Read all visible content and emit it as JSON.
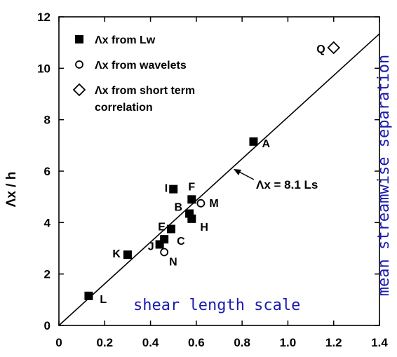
{
  "chart_data": {
    "type": "scatter",
    "title": "",
    "xlabel": "",
    "ylabel": "Λx / h",
    "xlim": [
      0,
      1.4
    ],
    "ylim": [
      0,
      12
    ],
    "x_ticks": [
      "0",
      "0.2",
      "0.4",
      "0.6",
      "0.8",
      "1.0",
      "1.2",
      "1.4"
    ],
    "y_ticks": [
      "0",
      "2",
      "4",
      "6",
      "8",
      "10",
      "12"
    ],
    "grid": false,
    "legend_position": "top-left",
    "legend": [
      {
        "marker": "square",
        "text": "Λx from Lw"
      },
      {
        "marker": "circle",
        "text": "Λx from wavelets"
      },
      {
        "marker": "diamond",
        "text": "Λx from short term correlation"
      }
    ],
    "series": [
      {
        "marker": "square",
        "points": [
          {
            "label": "L",
            "x": 0.13,
            "y": 1.15
          },
          {
            "label": "K",
            "x": 0.3,
            "y": 2.75
          },
          {
            "label": "J",
            "x": 0.44,
            "y": 3.15
          },
          {
            "label": "C",
            "x": 0.46,
            "y": 3.35
          },
          {
            "label": "E",
            "x": 0.49,
            "y": 3.75
          },
          {
            "label": "I",
            "x": 0.5,
            "y": 5.3
          },
          {
            "label": "B",
            "x": 0.57,
            "y": 4.35
          },
          {
            "label": "H",
            "x": 0.58,
            "y": 4.15
          },
          {
            "label": "F",
            "x": 0.58,
            "y": 4.9
          },
          {
            "label": "A",
            "x": 0.85,
            "y": 7.15
          }
        ]
      },
      {
        "marker": "circle",
        "points": [
          {
            "label": "N",
            "x": 0.46,
            "y": 2.85
          },
          {
            "label": "M",
            "x": 0.62,
            "y": 4.75
          }
        ]
      },
      {
        "marker": "diamond",
        "points": [
          {
            "label": "Q",
            "x": 1.2,
            "y": 10.8
          }
        ]
      }
    ],
    "fit_line": {
      "slope": 8.1,
      "intercept": 0,
      "x_range": [
        0,
        1.4
      ],
      "label": "Λx = 8.1 Ls"
    },
    "annotations": [
      "shear length scale",
      "mean streamwise separation"
    ],
    "colors": {
      "axis": "#000000",
      "annotation_text": "#1a1ab0"
    }
  }
}
